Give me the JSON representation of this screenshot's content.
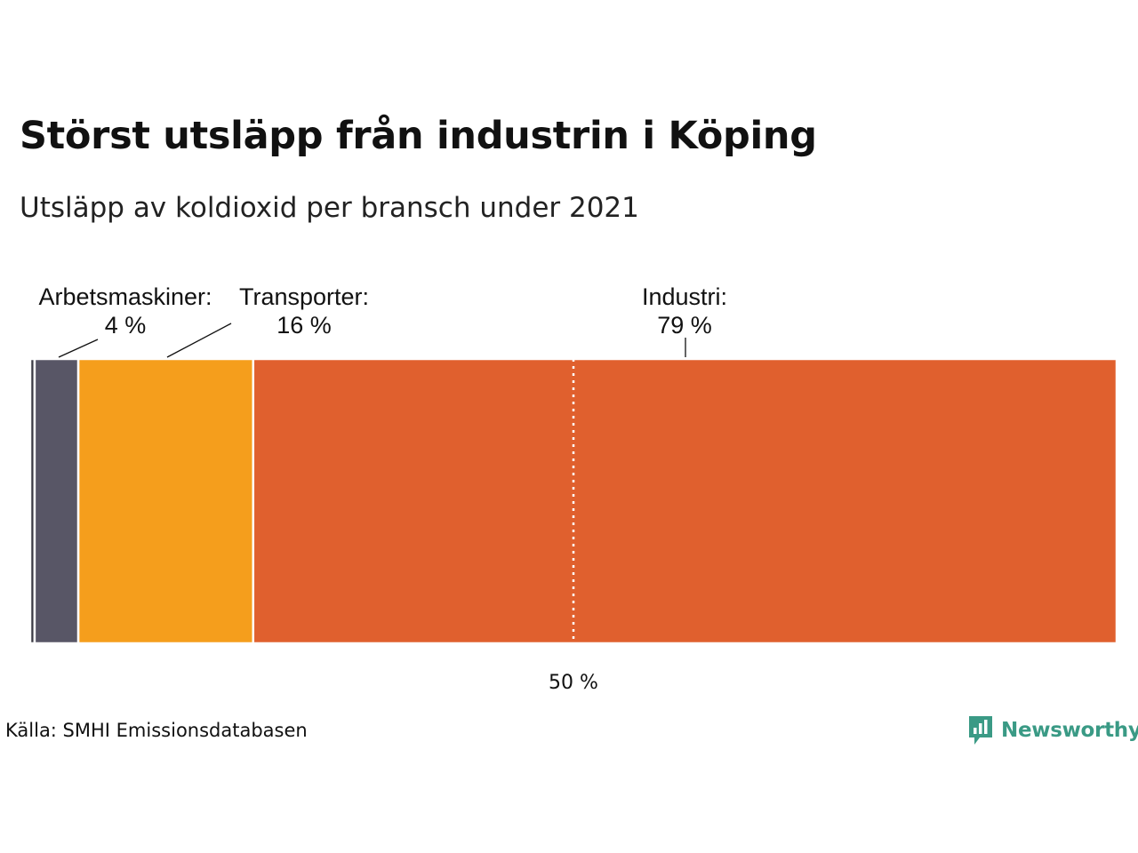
{
  "title": "Störst utsläpp från industrin i Köping",
  "subtitle": "Utsläpp av koldioxid per bransch under 2021",
  "source": "Källa: SMHI Emissionsdatabasen",
  "brand": "Newsworthy",
  "colors": {
    "background": "#ffffff",
    "text": "#111111",
    "brand": "#3a9a85"
  },
  "chart_data": {
    "type": "bar",
    "orientation": "horizontal-stacked",
    "unit": "%",
    "xlim": [
      0,
      100
    ],
    "categories": [
      "",
      "Arbetsmaskiner:",
      "Transporter:",
      "Industri:"
    ],
    "values": [
      0.4,
      4,
      16,
      79
    ],
    "labels": [
      "",
      "4 %",
      "16 %",
      "79 %"
    ],
    "colors": [
      "#3a3a44",
      "#585666",
      "#f59e1c",
      "#e0602e"
    ],
    "reference_line": {
      "value": 50,
      "label": "50 %",
      "style": "dotted"
    }
  }
}
